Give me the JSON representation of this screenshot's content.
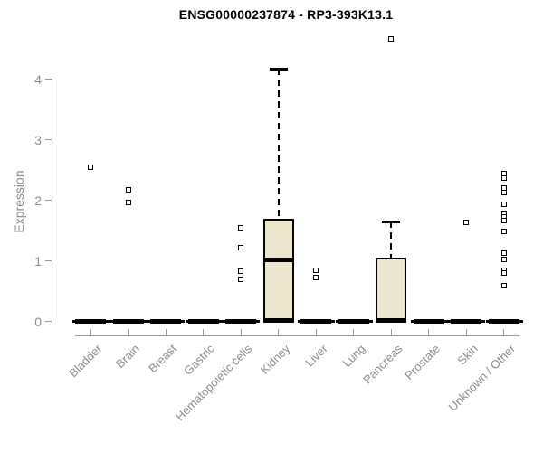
{
  "title": "ENSG00000237874 - RP3-393K13.1",
  "colors": {
    "box_fill": "#EDE8CD",
    "box_border": "#000000",
    "axis_line": "#999999",
    "axis_text": "#8c8c8c",
    "title_text": "#000000",
    "background": "#ffffff"
  },
  "chart_data": {
    "type": "boxplot",
    "title": "ENSG00000237874 - RP3-393K13.1",
    "xlabel": "",
    "ylabel": "Expression",
    "ylim": [
      0,
      4.75
    ],
    "yticks": [
      0,
      1,
      2,
      3,
      4
    ],
    "grid": false,
    "legend": "none",
    "categories": [
      "Bladder",
      "Brain",
      "Breast",
      "Gastric",
      "Hematopoietic cells",
      "Kidney",
      "Liver",
      "Lung",
      "Pancreas",
      "Prostate",
      "Skin",
      "Unknown / Other"
    ],
    "series": [
      {
        "name": "Bladder",
        "q1": 0,
        "median": 0,
        "q3": 0,
        "whisker_low": 0,
        "whisker_high": 0,
        "outliers": [
          2.54
        ]
      },
      {
        "name": "Brain",
        "q1": 0,
        "median": 0,
        "q3": 0,
        "whisker_low": 0,
        "whisker_high": 0,
        "outliers": [
          2.17,
          1.97
        ]
      },
      {
        "name": "Breast",
        "q1": 0,
        "median": 0,
        "q3": 0,
        "whisker_low": 0,
        "whisker_high": 0,
        "outliers": []
      },
      {
        "name": "Gastric",
        "q1": 0,
        "median": 0,
        "q3": 0,
        "whisker_low": 0,
        "whisker_high": 0,
        "outliers": []
      },
      {
        "name": "Hematopoietic cells",
        "q1": 0,
        "median": 0,
        "q3": 0,
        "whisker_low": 0,
        "whisker_high": 0,
        "outliers": [
          1.55,
          1.22,
          0.83,
          0.69
        ]
      },
      {
        "name": "Kidney",
        "q1": 0,
        "median": 1.01,
        "q3": 1.69,
        "whisker_low": 0,
        "whisker_high": 4.17,
        "outliers": []
      },
      {
        "name": "Liver",
        "q1": 0,
        "median": 0,
        "q3": 0,
        "whisker_low": 0,
        "whisker_high": 0,
        "outliers": [
          0.85,
          0.73
        ]
      },
      {
        "name": "Lung",
        "q1": 0,
        "median": 0,
        "q3": 0,
        "whisker_low": 0,
        "whisker_high": 0,
        "outliers": []
      },
      {
        "name": "Pancreas",
        "q1": 0,
        "median": 0,
        "q3": 1.05,
        "whisker_low": 0,
        "whisker_high": 1.65,
        "outliers": [
          4.67
        ]
      },
      {
        "name": "Prostate",
        "q1": 0,
        "median": 0,
        "q3": 0,
        "whisker_low": 0,
        "whisker_high": 0,
        "outliers": []
      },
      {
        "name": "Skin",
        "q1": 0,
        "median": 0,
        "q3": 0,
        "whisker_low": 0,
        "whisker_high": 0,
        "outliers": [
          1.64
        ]
      },
      {
        "name": "Unknown / Other",
        "q1": 0,
        "median": 0,
        "q3": 0,
        "whisker_low": 0,
        "whisker_high": 0,
        "outliers": [
          2.44,
          2.37,
          2.2,
          2.13,
          1.93,
          1.79,
          1.72,
          1.66,
          1.48,
          1.13,
          1.02,
          0.85,
          0.8,
          0.59
        ]
      }
    ]
  }
}
